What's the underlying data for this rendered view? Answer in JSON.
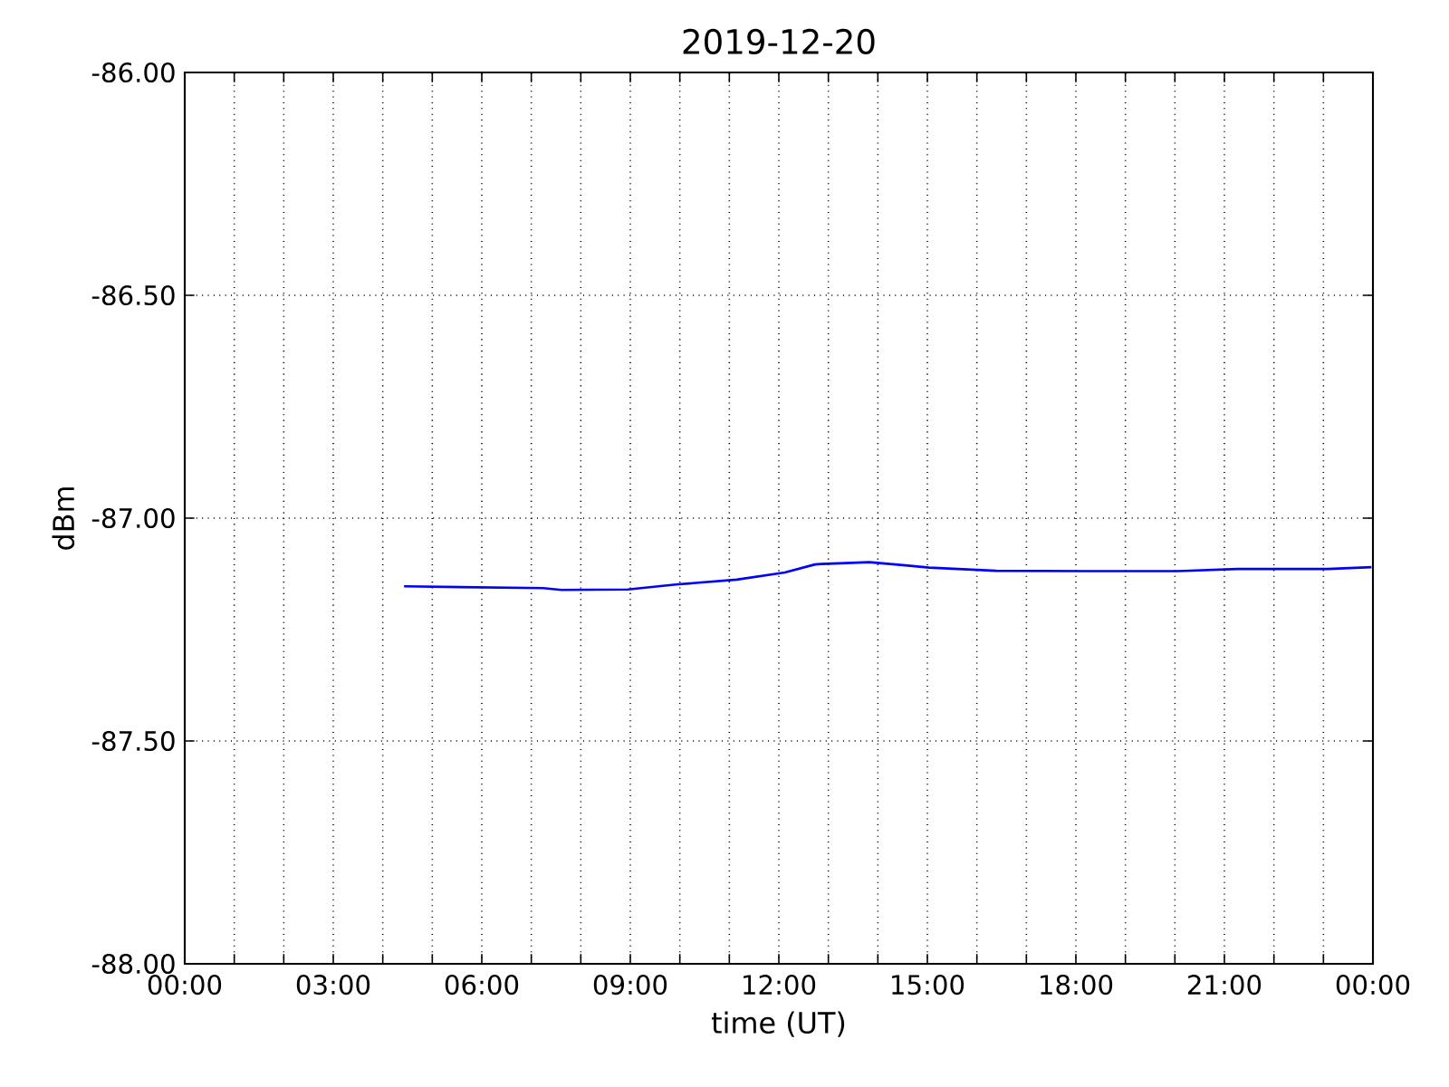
{
  "chart_data": {
    "type": "line",
    "title": "2019-12-20",
    "xlabel": "time (UT)",
    "ylabel": "dBm",
    "x": [
      4.43,
      7.24,
      7.61,
      8.95,
      9.92,
      11.15,
      12.12,
      12.73,
      12.85,
      13.83,
      14.56,
      15.04,
      16.39,
      18.22,
      20.05,
      21.26,
      23.09,
      23.97
    ],
    "values": [
      -87.153,
      -87.157,
      -87.161,
      -87.16,
      -87.149,
      -87.138,
      -87.122,
      -87.104,
      -87.103,
      -87.099,
      -87.106,
      -87.111,
      -87.118,
      -87.119,
      -87.119,
      -87.114,
      -87.114,
      -87.11
    ],
    "color": "#0000ff",
    "xlim": [
      0,
      24
    ],
    "ylim": [
      -88,
      -86
    ],
    "grid": true,
    "xticks": [
      {
        "value": 0,
        "label": "00:00"
      },
      {
        "value": 1,
        "label": null
      },
      {
        "value": 2,
        "label": null
      },
      {
        "value": 3,
        "label": "03:00"
      },
      {
        "value": 4,
        "label": null
      },
      {
        "value": 5,
        "label": null
      },
      {
        "value": 6,
        "label": "06:00"
      },
      {
        "value": 7,
        "label": null
      },
      {
        "value": 8,
        "label": null
      },
      {
        "value": 9,
        "label": "09:00"
      },
      {
        "value": 10,
        "label": null
      },
      {
        "value": 11,
        "label": null
      },
      {
        "value": 12,
        "label": "12:00"
      },
      {
        "value": 13,
        "label": null
      },
      {
        "value": 14,
        "label": null
      },
      {
        "value": 15,
        "label": "15:00"
      },
      {
        "value": 16,
        "label": null
      },
      {
        "value": 17,
        "label": null
      },
      {
        "value": 18,
        "label": "18:00"
      },
      {
        "value": 19,
        "label": null
      },
      {
        "value": 20,
        "label": null
      },
      {
        "value": 21,
        "label": "21:00"
      },
      {
        "value": 22,
        "label": null
      },
      {
        "value": 23,
        "label": null
      },
      {
        "value": 24,
        "label": "00:00"
      }
    ],
    "yticks": [
      {
        "value": -88,
        "label": "-88.00"
      },
      {
        "value": -87.5,
        "label": "-87.50"
      },
      {
        "value": -87,
        "label": "-87.00"
      },
      {
        "value": -86.5,
        "label": "-86.50"
      },
      {
        "value": -86,
        "label": "-86.00"
      }
    ]
  }
}
